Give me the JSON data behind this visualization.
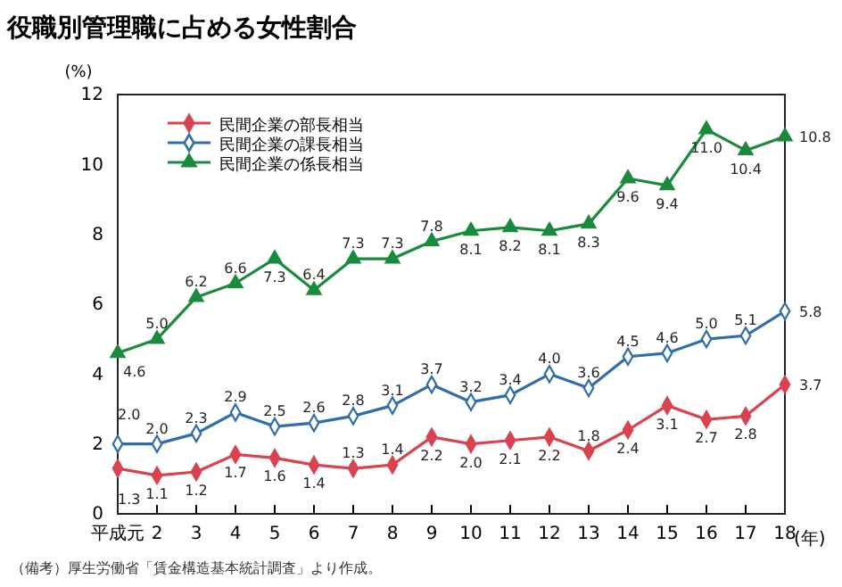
{
  "chart_data": {
    "type": "line",
    "title": "役職別管理職に占める女性割合",
    "ylabel": "(%)",
    "xlabel": "(年)",
    "categories": [
      "平成元",
      "2",
      "3",
      "4",
      "5",
      "6",
      "7",
      "8",
      "9",
      "10",
      "11",
      "12",
      "13",
      "14",
      "15",
      "16",
      "17",
      "18"
    ],
    "series": [
      {
        "name": "民間企業の部長相当",
        "color": "#d9434f",
        "marker": "diamond",
        "values": [
          1.3,
          1.1,
          1.2,
          1.7,
          1.6,
          1.4,
          1.3,
          1.4,
          2.2,
          2.0,
          2.1,
          2.2,
          1.8,
          2.4,
          3.1,
          2.7,
          2.8,
          3.7
        ],
        "value_labels": [
          "1.3",
          "1.1",
          "1.2",
          "1.7",
          "1.6",
          "1.4",
          "1.3",
          "1.4",
          "2.2",
          "2.0",
          "2.1",
          "2.2",
          "1.8",
          "2.4",
          "3.1",
          "2.7",
          "2.8",
          "3.7"
        ]
      },
      {
        "name": "民間企業の課長相当",
        "color": "#2f6ea8",
        "marker": "diamond-open",
        "values": [
          2.0,
          2.0,
          2.3,
          2.9,
          2.5,
          2.6,
          2.8,
          3.1,
          3.7,
          3.2,
          3.4,
          4.0,
          3.6,
          4.5,
          4.6,
          5.0,
          5.1,
          5.8
        ],
        "value_labels": [
          "2.0",
          "2.0",
          "2.3",
          "2.9",
          "2.5",
          "2.6",
          "2.8",
          "3.1",
          "3.7",
          "3.2",
          "3.4",
          "4.0",
          "3.6",
          "4.5",
          "4.6",
          "5.0",
          "5.1",
          "5.8"
        ]
      },
      {
        "name": "民間企業の係長相当",
        "color": "#1a8a3c",
        "marker": "triangle",
        "values": [
          4.6,
          5.0,
          6.2,
          6.6,
          7.3,
          6.4,
          7.3,
          7.3,
          7.8,
          8.1,
          8.2,
          8.1,
          8.3,
          9.6,
          9.4,
          11.0,
          10.4,
          10.8
        ],
        "value_labels": [
          "4.6",
          "5.0",
          "6.2",
          "6.6",
          "7.3",
          "6.4",
          "7.3",
          "7.3",
          "7.8",
          "8.1",
          "8.2",
          "8.1",
          "8.3",
          "9.6",
          "9.4",
          "11.0",
          "10.4",
          "10.8"
        ]
      }
    ],
    "ylim": [
      0,
      12
    ],
    "yticks": [
      0,
      2,
      4,
      6,
      8,
      10,
      12
    ],
    "grid": false,
    "legend": "top left",
    "data_labels": true,
    "annotations": [
      "（備考）厚生労働省「賃金構造基本統計調査」より作成。"
    ]
  }
}
